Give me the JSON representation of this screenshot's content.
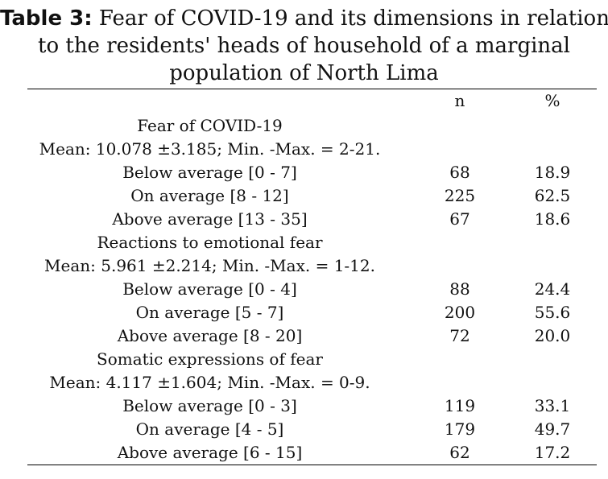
{
  "caption": {
    "label": "Table 3:",
    "lines": [
      " Fear of COVID-19 and its dimensions in relation",
      "to the residents' heads of household of a marginal",
      "population of North Lima"
    ]
  },
  "table": {
    "columns": [
      "",
      "n",
      "%"
    ],
    "rows": [
      {
        "label": "Fear of COVID-19",
        "n": "",
        "pct": ""
      },
      {
        "label": "Mean: 10.078 ±3.185; Min. -Max. = 2-21.",
        "n": "",
        "pct": ""
      },
      {
        "label": "Below average [0 - 7]",
        "n": "68",
        "pct": "18.9"
      },
      {
        "label": "On average [8 - 12]",
        "n": "225",
        "pct": "62.5"
      },
      {
        "label": "Above average [13 - 35]",
        "n": "67",
        "pct": "18.6"
      },
      {
        "label": "Reactions to emotional fear",
        "n": "",
        "pct": ""
      },
      {
        "label": "Mean: 5.961 ±2.214; Min. -Max. = 1-12.",
        "n": "",
        "pct": ""
      },
      {
        "label": "Below average [0 - 4]",
        "n": "88",
        "pct": "24.4"
      },
      {
        "label": "On average [5 - 7]",
        "n": "200",
        "pct": "55.6"
      },
      {
        "label": "Above average [8 - 20]",
        "n": "72",
        "pct": "20.0"
      },
      {
        "label": "Somatic expressions of fear",
        "n": "",
        "pct": ""
      },
      {
        "label": "Mean: 4.117 ±1.604; Min. -Max. = 0-9.",
        "n": "",
        "pct": ""
      },
      {
        "label": "Below average [0 - 3]",
        "n": "119",
        "pct": "33.1"
      },
      {
        "label": "On average [4 - 5]",
        "n": "179",
        "pct": "49.7"
      },
      {
        "label": "Above average [6 - 15]",
        "n": "62",
        "pct": "17.2"
      }
    ]
  }
}
